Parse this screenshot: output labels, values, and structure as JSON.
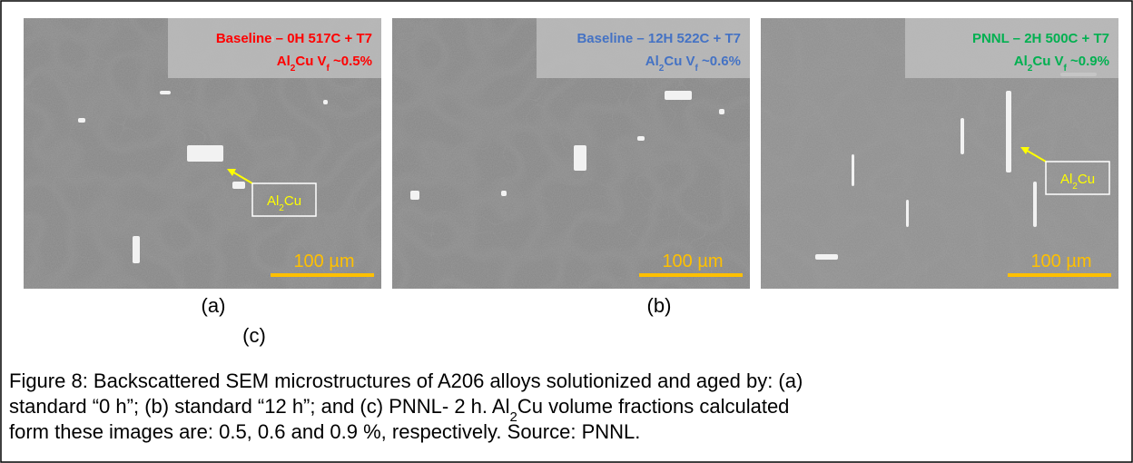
{
  "panels": [
    {
      "title": "Baseline – 0H 517C + T7",
      "composition": [
        "Al",
        "2",
        "Cu V",
        "f",
        " ~0.5%"
      ],
      "color": "#ff0000",
      "scale_bar": "100 µm",
      "annotation": [
        "Al",
        "2",
        "Cu"
      ]
    },
    {
      "title": "Baseline – 12H 522C + T7",
      "composition": [
        "Al",
        "2",
        "Cu V",
        "f",
        " ~0.6%"
      ],
      "color": "#4472c4",
      "scale_bar": "100 µm"
    },
    {
      "title": "PNNL – 2H 500C + T7",
      "composition": [
        "Al",
        "2",
        "Cu V",
        "f",
        " ~0.9%"
      ],
      "color": "#00b050",
      "scale_bar": "100 µm",
      "annotation": [
        "Al",
        "2",
        "Cu"
      ]
    }
  ],
  "labels": [
    "(a)",
    "(b)",
    "(c)"
  ],
  "caption": {
    "line1": "Figure 8: Backscattered SEM microstructures of A206 alloys solutionized and aged by: (a)",
    "line2": [
      "standard “0 h”; (b) standard “12 h”; and (c) PNNL- 2 h. Al",
      "2",
      "Cu volume fractions calculated"
    ],
    "line3": "form these images are: 0.5, 0.6 and 0.9 %, respectively. Source: PNNL."
  }
}
